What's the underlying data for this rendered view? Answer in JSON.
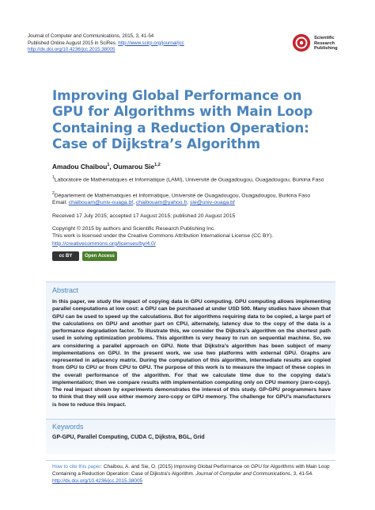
{
  "header": {
    "journal_line": "Journal of Computer and Communications, 2015, 3, 41-54",
    "published_prefix": "Published Online August 2015 in SciRes.",
    "published_link": "http://www.scirp.org/journal/jcc",
    "doi_link": "http://dx.doi.org/10.4236/jcc.2015.38005"
  },
  "publisher_logo": {
    "text_line1": "Scientific",
    "text_line2": "Research",
    "text_line3": "Publishing",
    "color": "#c8232c"
  },
  "title": "Improving Global Performance on GPU for Algorithms with Main Loop Containing a Reduction Operation: Case of Dijkstra’s Algorithm",
  "authors": {
    "author1": "Amadou Chaibou",
    "author1_sup": "1",
    "separator": ", ",
    "author2": "Oumarou Sie",
    "author2_sup": "1,2"
  },
  "affiliations": {
    "aff1_sup": "1",
    "aff1_text": "Laboratoire de Mathématiques et Informatique (LAMI), Université de Ouagadougou, Ouagadougou, Burkina Faso",
    "aff2_sup": "2",
    "aff2_text": "Département de Mathématiques et Informatique, Université de Ouagadougou, Ouagadougou, Burkina Faso",
    "email_label": "Email:",
    "email1": "chaibouam@univ-ouaga.bf",
    "email2": "chaibouam@yahoo.fr",
    "email3": "sie@univ-ouaga.bf"
  },
  "dates": "Received 17 July 2015; accepted 17 August 2015; published 20 August 2015",
  "copyright": {
    "line1": "Copyright © 2015 by authors and Scientific Research Publishing Inc.",
    "line2": "This work is licensed under the Creative Commons Attribution International License (CC BY).",
    "license_link": "http://creativecommons.org/licenses/by/4.0/"
  },
  "badges": {
    "cc_label": "cc BY",
    "open_access_label": "Open Access"
  },
  "abstract": {
    "heading": "Abstract",
    "text": "In this paper, we study the impact of copying data in GPU computing. GPU computing allows implementing parallel computations at low cost: a GPU can be purchased at under USD 500. Many studies have shown that GPU can be used to speed up the calculations. But for algorithms requiring data to be copied, a large part of the calculations on GPU and another part on CPU, alternately, latency due to the copy of the data is a performance degradation factor. To illustrate this, we consider the Dijkstra’s algorithm on the shortest path used in solving optimization problems. This algorithm is very heavy to run on sequential machine. So, we are considering a parallel approach on GPU. Note that Dijkstra’s algorithm has been subject of many implementations on GPU. In the present work, we use two platforms with external GPU. Graphs are represented in adjacency matrix. During the computation of this algorithm, intermediate results are copied from GPU to CPU or from CPU to GPU. The purpose of this work is to measure the impact of these copies in the overall performance of the algorithm. For that we calculate time due to the copying data’s implementation; then we compare results with implementation computing only on CPU memory (zero-copy). The real impact shown by experiments demonstrates the interest of this study. GP-GPU programmers have to think that they will use either memory zero-copy or GPU memory. The challenge for GPU’s manufacturers is how to reduce this impact."
  },
  "keywords": {
    "heading": "Keywords",
    "text": "GP-GPU, Parallel Computing, CUDA C, Dijkstra, BGL, Grid"
  },
  "citation": {
    "label": "How to cite this paper:",
    "text_main": " Chaibou, A. and Sie, O. (2015) Improving Global Performance on GPU for Algorithms with Main Loop Containing a Reduction Operation: Case of Dijkstra’s Algorithm. ",
    "journal_italic": "Journal of Computer and Communications",
    "text_tail": ", 3, 41-54.",
    "doi_link": "http://dx.doi.org/10.4236/jcc.2015.38005"
  }
}
